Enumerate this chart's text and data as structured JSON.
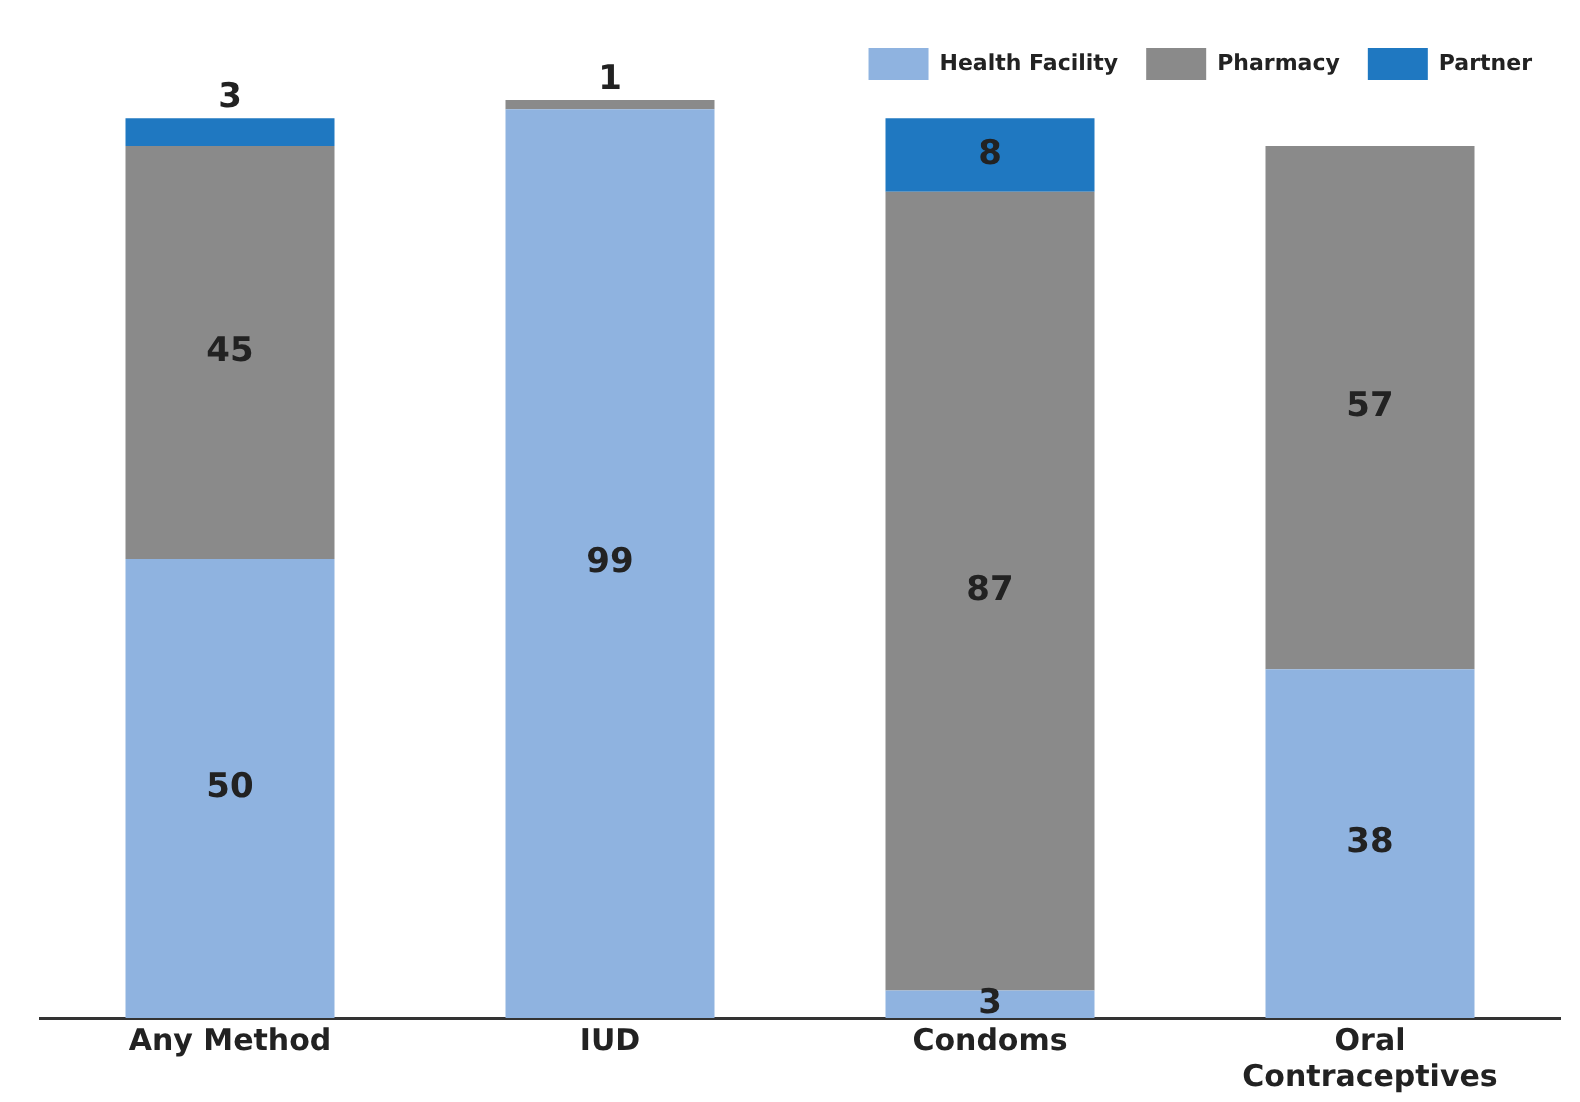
{
  "chart_data": {
    "type": "bar",
    "stacked": true,
    "data_labels": true,
    "legend": "top right",
    "grid": false,
    "categories": [
      "Any Method",
      "IUD",
      "Condoms",
      "Oral Contraceptives"
    ],
    "series": [
      {
        "name": "Health Facility",
        "color": "#8fb3e0",
        "values": [
          50,
          99,
          3,
          38
        ]
      },
      {
        "name": "Pharmacy",
        "color": "#8a8a8a",
        "values": [
          45,
          1,
          87,
          57
        ]
      },
      {
        "name": "Partner",
        "color": "#1f78c1",
        "values": [
          3,
          null,
          8,
          null
        ]
      }
    ]
  }
}
